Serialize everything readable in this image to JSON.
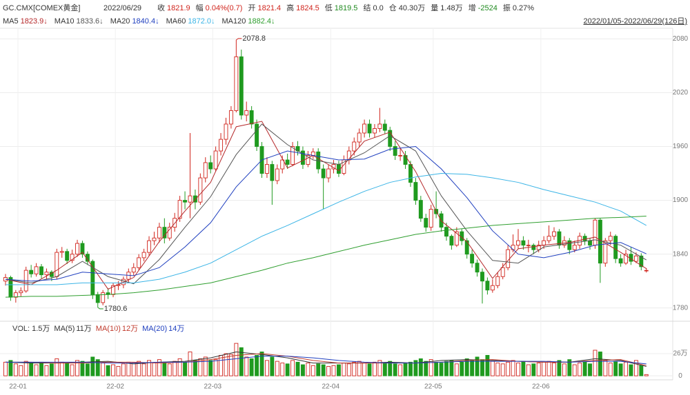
{
  "header": {
    "symbol": "GC.CMX[COMEX黄金]",
    "date": "2022/06/29",
    "fields": [
      {
        "label": "收",
        "value": "1821.9",
        "color": "#d0241c"
      },
      {
        "label": "幅",
        "value": "0.04%(0.7)",
        "color": "#d0241c"
      },
      {
        "label": "开",
        "value": "1821.4",
        "color": "#d0241c"
      },
      {
        "label": "高",
        "value": "1824.5",
        "color": "#d0241c"
      },
      {
        "label": "低",
        "value": "1819.5",
        "color": "#1f8a1f"
      },
      {
        "label": "结",
        "value": "0.0",
        "color": "#333333"
      },
      {
        "label": "仓",
        "value": "40.30万",
        "color": "#333333"
      },
      {
        "label": "量",
        "value": "1.48万",
        "color": "#333333"
      },
      {
        "label": "增",
        "value": "-2524",
        "color": "#1f8a1f"
      },
      {
        "label": "振",
        "value": "0.27%",
        "color": "#333333"
      }
    ],
    "range": "2022/01/05-2022/06/29(126日)"
  },
  "chart_data": {
    "type": "candlestick",
    "up_color": "#d0241c",
    "down_color": "#1f9a1f",
    "ylim": [
      1766,
      2091
    ],
    "yticks": [
      1780,
      1840,
      1900,
      1960,
      2020,
      2080
    ],
    "grid": true,
    "xticks": [
      {
        "value": 0,
        "label": "22-01"
      },
      {
        "value": 19,
        "label": "22-02"
      },
      {
        "value": 38,
        "label": "22-03"
      },
      {
        "value": 61,
        "label": "22-04"
      },
      {
        "value": 81,
        "label": "22-05"
      },
      {
        "value": 102,
        "label": "22-06"
      }
    ],
    "ohlc": [
      [
        1810,
        1818,
        1805,
        1814
      ],
      [
        1814,
        1816,
        1788,
        1792
      ],
      [
        1792,
        1800,
        1786,
        1797
      ],
      [
        1797,
        1803,
        1793,
        1799
      ],
      [
        1799,
        1826,
        1797,
        1822
      ],
      [
        1822,
        1828,
        1814,
        1818
      ],
      [
        1818,
        1830,
        1815,
        1826
      ],
      [
        1826,
        1829,
        1813,
        1817
      ],
      [
        1817,
        1824,
        1812,
        1820
      ],
      [
        1820,
        1822,
        1810,
        1815
      ],
      [
        1815,
        1846,
        1812,
        1842
      ],
      [
        1842,
        1848,
        1836,
        1843
      ],
      [
        1843,
        1846,
        1829,
        1833
      ],
      [
        1833,
        1845,
        1830,
        1840
      ],
      [
        1840,
        1856,
        1837,
        1852
      ],
      [
        1852,
        1855,
        1836,
        1840
      ],
      [
        1840,
        1843,
        1828,
        1832
      ],
      [
        1832,
        1834,
        1790,
        1795
      ],
      [
        1795,
        1798,
        1780.6,
        1786
      ],
      [
        1786,
        1800,
        1783,
        1797
      ],
      [
        1797,
        1802,
        1790,
        1795
      ],
      [
        1795,
        1808,
        1792,
        1805
      ],
      [
        1805,
        1810,
        1800,
        1806
      ],
      [
        1806,
        1815,
        1802,
        1812
      ],
      [
        1812,
        1824,
        1808,
        1820
      ],
      [
        1820,
        1830,
        1816,
        1825
      ],
      [
        1825,
        1840,
        1822,
        1836
      ],
      [
        1836,
        1846,
        1832,
        1842
      ],
      [
        1842,
        1860,
        1838,
        1855
      ],
      [
        1855,
        1865,
        1850,
        1858
      ],
      [
        1858,
        1875,
        1853,
        1870
      ],
      [
        1870,
        1880,
        1852,
        1858
      ],
      [
        1858,
        1875,
        1855,
        1870
      ],
      [
        1870,
        1886,
        1865,
        1880
      ],
      [
        1880,
        1905,
        1876,
        1900
      ],
      [
        1900,
        1910,
        1890,
        1898
      ],
      [
        1898,
        1975,
        1880,
        1905
      ],
      [
        1905,
        1912,
        1890,
        1898
      ],
      [
        1898,
        1930,
        1895,
        1925
      ],
      [
        1925,
        1948,
        1920,
        1942
      ],
      [
        1942,
        1950,
        1930,
        1935
      ],
      [
        1935,
        1960,
        1932,
        1955
      ],
      [
        1955,
        1975,
        1950,
        1968
      ],
      [
        1968,
        1992,
        1962,
        1985
      ],
      [
        1985,
        2005,
        1980,
        2000
      ],
      [
        2000,
        2078.8,
        1998,
        2060
      ],
      [
        2060,
        2068,
        1990,
        1995
      ],
      [
        1995,
        2010,
        1988,
        2000
      ],
      [
        2000,
        2005,
        1980,
        1985
      ],
      [
        1985,
        1990,
        1955,
        1960
      ],
      [
        1960,
        1965,
        1925,
        1930
      ],
      [
        1930,
        1948,
        1925,
        1940
      ],
      [
        1940,
        1944,
        1895,
        1922
      ],
      [
        1922,
        1940,
        1918,
        1935
      ],
      [
        1935,
        1950,
        1930,
        1945
      ],
      [
        1945,
        1952,
        1935,
        1940
      ],
      [
        1940,
        1965,
        1938,
        1960
      ],
      [
        1960,
        1966,
        1950,
        1955
      ],
      [
        1955,
        1960,
        1935,
        1940
      ],
      [
        1940,
        1955,
        1937,
        1950
      ],
      [
        1950,
        1958,
        1946,
        1954
      ],
      [
        1954,
        1958,
        1930,
        1935
      ],
      [
        1935,
        1940,
        1890,
        1925
      ],
      [
        1925,
        1940,
        1920,
        1935
      ],
      [
        1935,
        1945,
        1930,
        1940
      ],
      [
        1940,
        1944,
        1926,
        1930
      ],
      [
        1930,
        1950,
        1928,
        1945
      ],
      [
        1945,
        1960,
        1940,
        1955
      ],
      [
        1955,
        1970,
        1950,
        1965
      ],
      [
        1965,
        1980,
        1960,
        1975
      ],
      [
        1975,
        1990,
        1970,
        1985
      ],
      [
        1985,
        1990,
        1970,
        1975
      ],
      [
        1975,
        1985,
        1970,
        1980
      ],
      [
        1980,
        2003,
        1976,
        1985
      ],
      [
        1985,
        1990,
        1974,
        1978
      ],
      [
        1978,
        1982,
        1955,
        1960
      ],
      [
        1960,
        1966,
        1945,
        1950
      ],
      [
        1950,
        1958,
        1944,
        1950
      ],
      [
        1950,
        1955,
        1935,
        1940
      ],
      [
        1940,
        1944,
        1915,
        1920
      ],
      [
        1920,
        1925,
        1895,
        1900
      ],
      [
        1900,
        1905,
        1876,
        1880
      ],
      [
        1880,
        1885,
        1865,
        1870
      ],
      [
        1870,
        1895,
        1866,
        1890
      ],
      [
        1890,
        1910,
        1880,
        1885
      ],
      [
        1885,
        1888,
        1865,
        1870
      ],
      [
        1870,
        1875,
        1855,
        1860
      ],
      [
        1860,
        1862,
        1845,
        1850
      ],
      [
        1850,
        1870,
        1848,
        1865
      ],
      [
        1865,
        1868,
        1850,
        1855
      ],
      [
        1855,
        1858,
        1835,
        1840
      ],
      [
        1840,
        1845,
        1825,
        1830
      ],
      [
        1830,
        1834,
        1815,
        1820
      ],
      [
        1820,
        1824,
        1785,
        1810
      ],
      [
        1810,
        1814,
        1795,
        1800
      ],
      [
        1800,
        1812,
        1797,
        1805
      ],
      [
        1805,
        1820,
        1802,
        1815
      ],
      [
        1815,
        1830,
        1812,
        1825
      ],
      [
        1825,
        1850,
        1822,
        1845
      ],
      [
        1845,
        1862,
        1842,
        1850
      ],
      [
        1850,
        1868,
        1846,
        1855
      ],
      [
        1855,
        1860,
        1845,
        1850
      ],
      [
        1850,
        1856,
        1842,
        1850
      ],
      [
        1850,
        1852,
        1840,
        1845
      ],
      [
        1845,
        1855,
        1842,
        1850
      ],
      [
        1850,
        1860,
        1846,
        1855
      ],
      [
        1855,
        1872,
        1852,
        1860
      ],
      [
        1860,
        1870,
        1856,
        1865
      ],
      [
        1865,
        1868,
        1846,
        1850
      ],
      [
        1850,
        1860,
        1847,
        1855
      ],
      [
        1855,
        1858,
        1840,
        1845
      ],
      [
        1845,
        1855,
        1842,
        1850
      ],
      [
        1850,
        1864,
        1846,
        1860
      ],
      [
        1860,
        1863,
        1850,
        1855
      ],
      [
        1855,
        1858,
        1845,
        1850
      ],
      [
        1850,
        1880,
        1846,
        1878
      ],
      [
        1878,
        1880,
        1808,
        1830
      ],
      [
        1830,
        1858,
        1826,
        1855
      ],
      [
        1855,
        1865,
        1850,
        1860
      ],
      [
        1860,
        1862,
        1830,
        1835
      ],
      [
        1835,
        1840,
        1826,
        1830
      ],
      [
        1830,
        1845,
        1828,
        1840
      ],
      [
        1840,
        1848,
        1828,
        1832
      ],
      [
        1832,
        1842,
        1830,
        1838
      ],
      [
        1838,
        1841,
        1822,
        1826
      ],
      [
        1821.4,
        1824.5,
        1819.5,
        1821.9
      ]
    ],
    "annotations": [
      {
        "index": 45,
        "value": 2078.8,
        "label": "2078.8"
      },
      {
        "index": 18,
        "value": 1780.6,
        "label": "1780.6"
      }
    ],
    "ma_x": [
      0,
      5,
      10,
      15,
      20,
      25,
      30,
      35,
      40,
      45,
      50,
      55,
      60,
      65,
      70,
      75,
      80,
      85,
      90,
      95,
      100,
      105,
      110,
      115,
      120,
      125
    ],
    "ma": [
      {
        "name": "MA5",
        "value_label": "1823.9↓",
        "color": "#b5282a",
        "values": [
          1812,
          1806,
          1822,
          1842,
          1801,
          1814,
          1854,
          1888,
          1920,
          1982,
          1988,
          1936,
          1950,
          1933,
          1966,
          1976,
          1932,
          1877,
          1854,
          1813,
          1846,
          1850,
          1853,
          1859,
          1842,
          1823.9
        ]
      },
      {
        "name": "MA10",
        "value_label": "1833.6↓",
        "color": "#555555",
        "values": [
          1812,
          1808,
          1815,
          1832,
          1815,
          1807,
          1834,
          1870,
          1904,
          1951,
          1985,
          1962,
          1945,
          1940,
          1953,
          1972,
          1955,
          1905,
          1866,
          1833,
          1830,
          1848,
          1852,
          1856,
          1850,
          1833.6
        ]
      },
      {
        "name": "MA20",
        "value_label": "1840.4↓",
        "color": "#1f3fbf",
        "values": [
          1812,
          1810,
          1812,
          1820,
          1818,
          1816,
          1825,
          1848,
          1875,
          1915,
          1945,
          1955,
          1950,
          1945,
          1946,
          1957,
          1960,
          1935,
          1903,
          1866,
          1840,
          1836,
          1842,
          1850,
          1853,
          1840.4
        ]
      },
      {
        "name": "MA60",
        "value_label": "1872.0↓",
        "color": "#3ab4e6",
        "values": [
          1806,
          1806,
          1806,
          1808,
          1808,
          1808,
          1812,
          1820,
          1830,
          1845,
          1860,
          1872,
          1885,
          1898,
          1910,
          1920,
          1926,
          1930,
          1929,
          1925,
          1920,
          1912,
          1905,
          1898,
          1888,
          1872.0
        ]
      },
      {
        "name": "MA120",
        "value_label": "1882.4↓",
        "color": "#2e9e2e",
        "values": [
          1792,
          1793,
          1793,
          1794,
          1795,
          1797,
          1800,
          1804,
          1808,
          1815,
          1822,
          1830,
          1836,
          1843,
          1850,
          1856,
          1862,
          1866,
          1869,
          1872,
          1874,
          1876,
          1878,
          1880,
          1881,
          1882.4
        ]
      }
    ],
    "volume": {
      "label": "VOL: 1.5万",
      "ylim": [
        -4.7,
        51
      ],
      "yticks": [
        0,
        {
          "value": 26,
          "label": "26万"
        }
      ],
      "values": [
        16,
        18,
        14,
        12,
        17,
        15,
        13,
        16,
        12,
        14,
        20,
        16,
        15,
        13,
        18,
        17,
        14,
        22,
        19,
        15,
        12,
        13,
        11,
        14,
        16,
        15,
        17,
        14,
        18,
        15,
        19,
        16,
        14,
        17,
        20,
        16,
        28,
        18,
        20,
        22,
        18,
        19,
        24,
        26,
        25,
        38,
        33,
        22,
        20,
        24,
        28,
        18,
        22,
        17,
        15,
        14,
        18,
        16,
        13,
        15,
        12,
        14,
        13,
        11,
        12,
        13,
        15,
        14,
        16,
        17,
        15,
        14,
        16,
        18,
        15,
        17,
        14,
        13,
        15,
        16,
        18,
        20,
        17,
        19,
        16,
        15,
        17,
        18,
        14,
        16,
        20,
        18,
        22,
        19,
        24,
        17,
        15,
        14,
        16,
        18,
        15,
        17,
        13,
        14,
        15,
        16,
        17,
        15,
        18,
        14,
        19,
        13,
        15,
        16,
        14,
        30,
        28,
        18,
        15,
        17,
        14,
        16,
        13,
        18,
        12,
        1.5
      ],
      "ma": [
        {
          "name": "MA(5)",
          "value_label": "11万",
          "color": "#333333",
          "values": [
            16,
            15,
            15,
            16,
            17,
            14,
            16,
            17,
            21,
            28,
            25,
            21,
            15,
            15,
            15,
            16,
            15,
            18,
            19,
            18,
            17,
            16,
            16,
            20,
            18,
            11
          ]
        },
        {
          "name": "MA(10)",
          "value_label": "12万",
          "color": "#c0392b",
          "values": [
            16,
            16,
            15,
            15,
            16,
            16,
            15,
            16,
            19,
            24,
            26,
            23,
            18,
            15,
            15,
            15,
            15,
            16,
            18,
            19,
            17,
            16,
            16,
            18,
            19,
            12
          ]
        },
        {
          "name": "MA(20)",
          "value_label": "14万",
          "color": "#1f3fbf",
          "values": [
            16,
            16,
            16,
            16,
            15,
            15,
            16,
            16,
            17,
            20,
            23,
            23,
            21,
            18,
            16,
            15,
            15,
            16,
            17,
            17,
            17,
            17,
            16,
            17,
            17,
            14
          ]
        }
      ]
    }
  }
}
